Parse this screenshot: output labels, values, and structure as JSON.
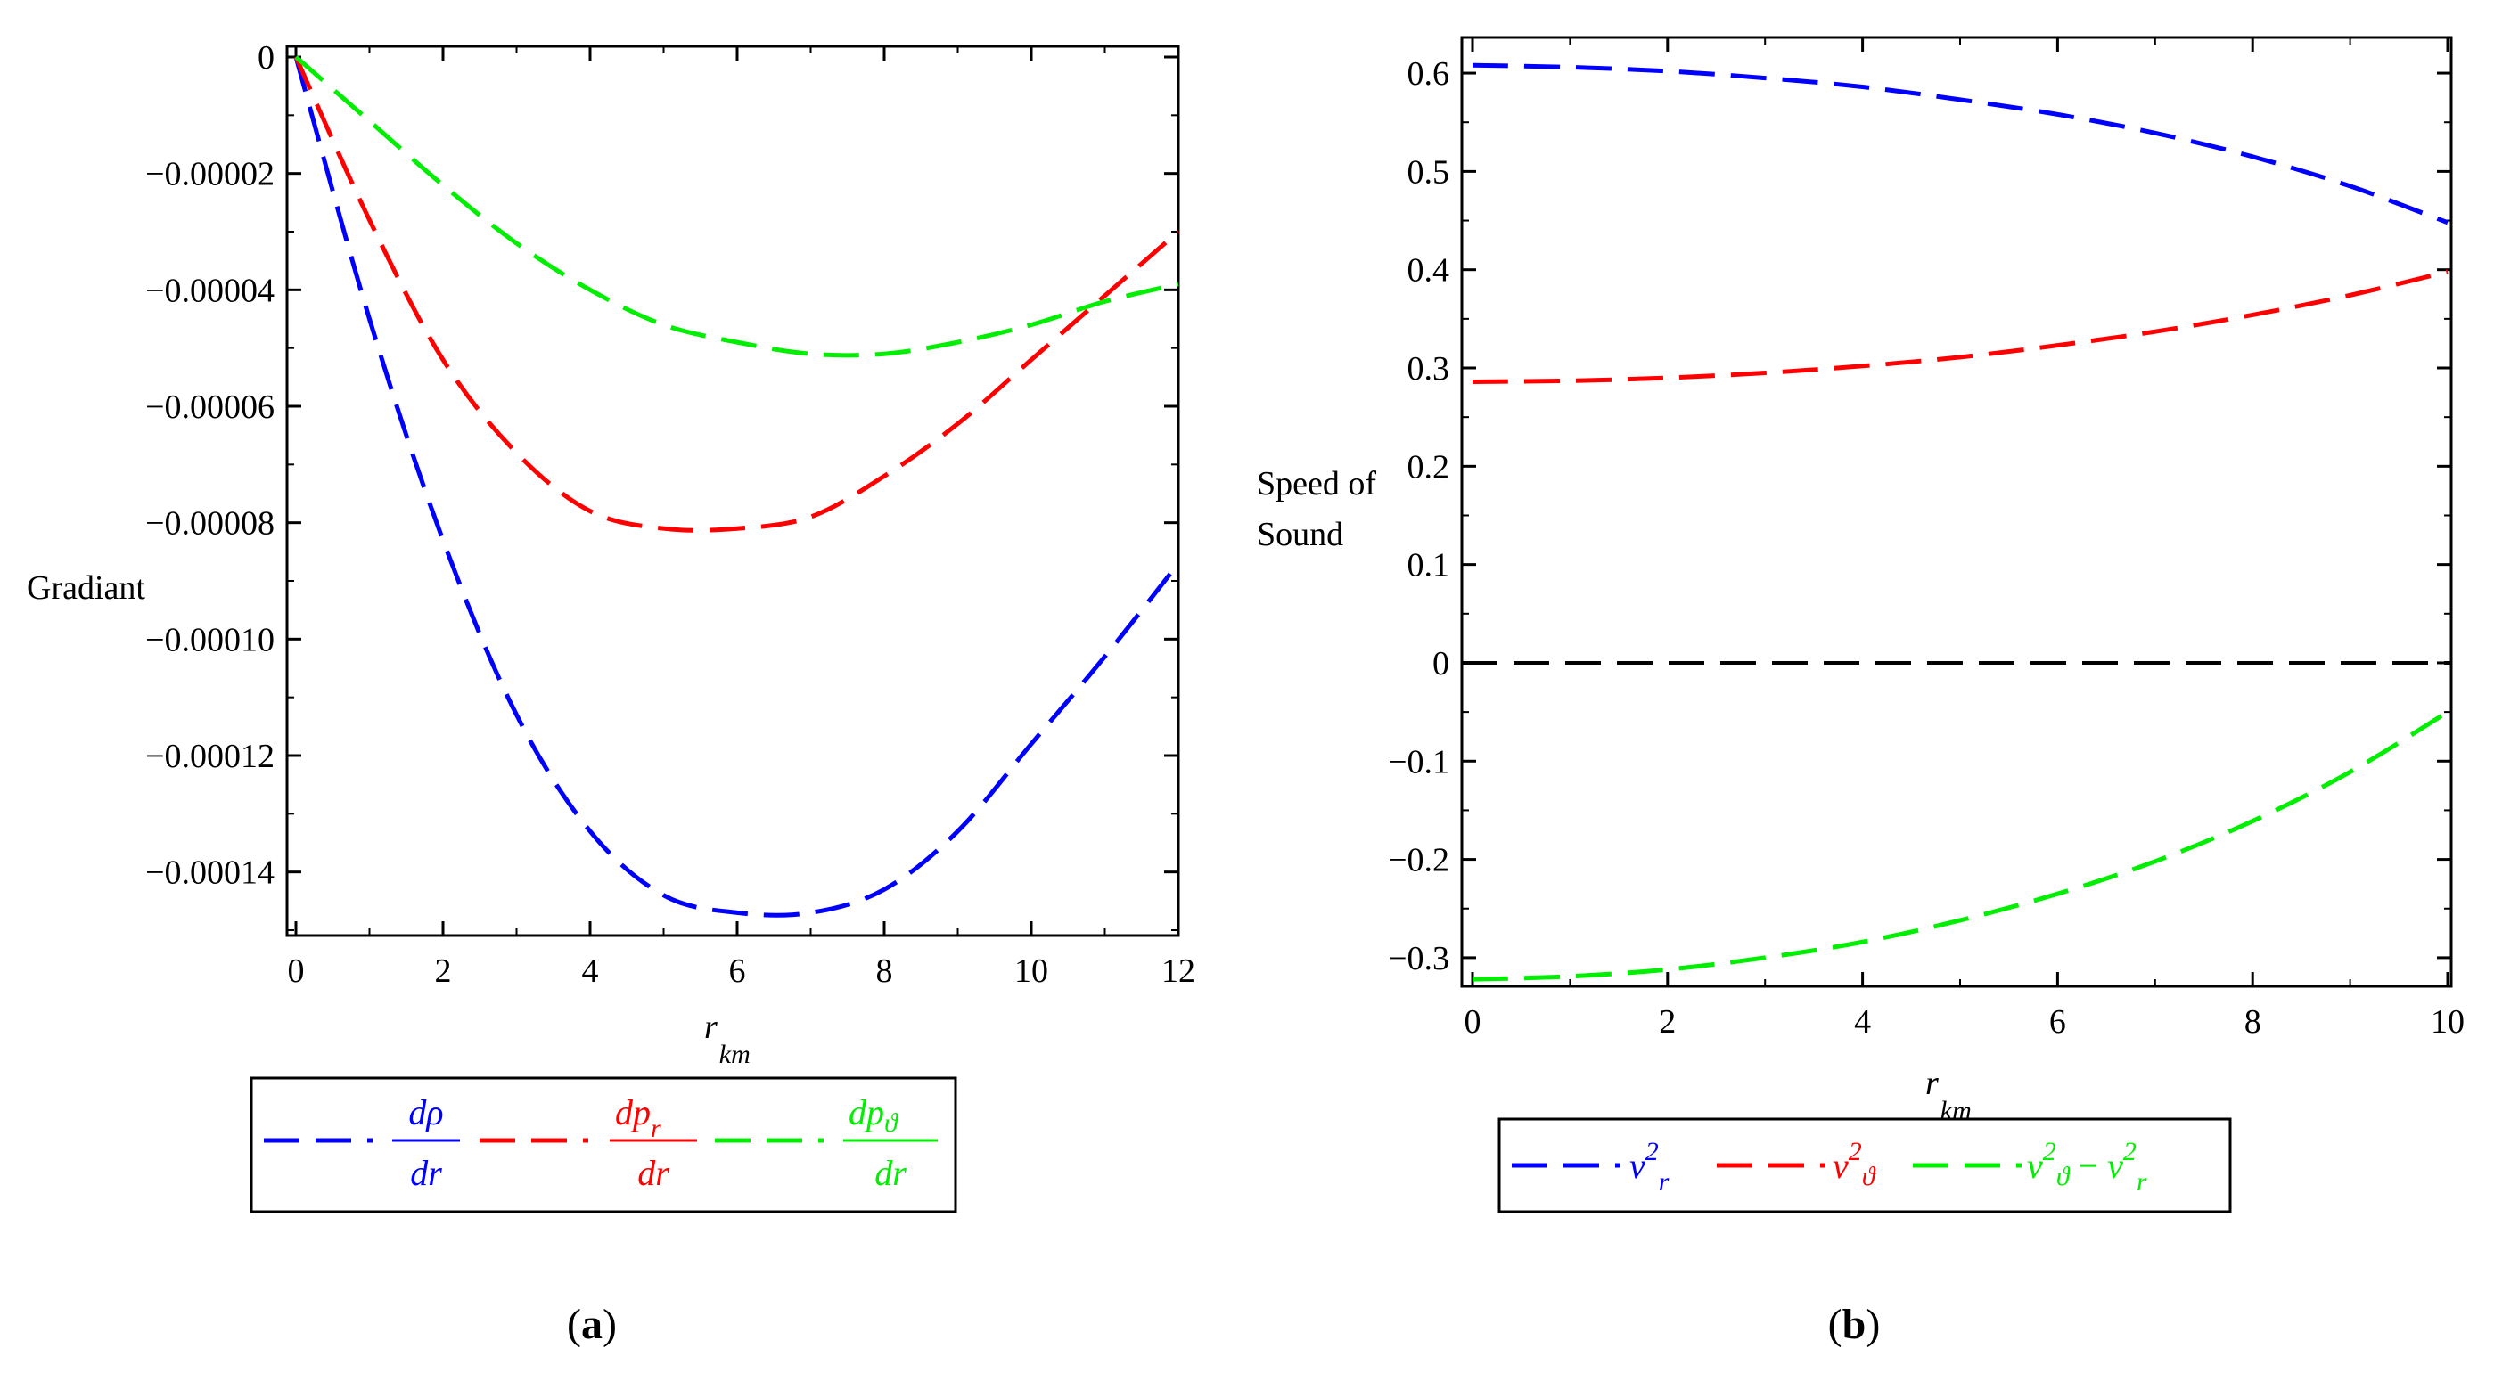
{
  "figure": {
    "panels": [
      {
        "letter": "(a)",
        "letter_bold": "a"
      },
      {
        "letter": "(b)",
        "letter_bold": "b"
      }
    ]
  },
  "chart_data": [
    {
      "type": "line",
      "panel": "a",
      "ylabel": "Gradiant",
      "xlabel_main": "r",
      "xlabel_sub": "km",
      "xlim": [
        0,
        12
      ],
      "ylim": [
        -0.00015,
        0
      ],
      "x_ticks": [
        0,
        2,
        4,
        6,
        8,
        10,
        12
      ],
      "x_tick_labels": [
        "0",
        "2",
        "4",
        "6",
        "8",
        "10",
        "12"
      ],
      "y_ticks": [
        0,
        -2e-05,
        -4e-05,
        -6e-05,
        -8e-05,
        -0.0001,
        -0.00012,
        -0.00014
      ],
      "y_tick_labels": [
        "0",
        "−0.00002",
        "−0.00004",
        "−0.00006",
        "−0.00008",
        "−0.00010",
        "−0.00012",
        "−0.00014"
      ],
      "x": [
        0,
        1,
        2,
        3,
        4,
        5,
        6,
        7,
        8,
        9,
        10,
        11,
        12
      ],
      "series": [
        {
          "name": "dρ/dr",
          "color": "#0000ff",
          "legend_num": "dρ",
          "legend_num_sub": "",
          "legend_den": "dr",
          "values": [
            0,
            -4.5e-05,
            -8.3e-05,
            -0.000113,
            -0.000133,
            -0.000144,
            -0.000147,
            -0.000147,
            -0.000143,
            -0.000133,
            -0.000118,
            -0.000103,
            -8.7e-05
          ]
        },
        {
          "name": "dp_r/dr",
          "color": "#ff0000",
          "legend_num": "dp",
          "legend_num_sub": "r",
          "legend_den": "dr",
          "values": [
            0,
            -2.8e-05,
            -5.2e-05,
            -6.8e-05,
            -7.8e-05,
            -8.1e-05,
            -8.1e-05,
            -7.9e-05,
            -7.2e-05,
            -6.3e-05,
            -5.2e-05,
            -4.1e-05,
            -3e-05
          ]
        },
        {
          "name": "dp_ϑ/dr",
          "color": "#00ee00",
          "legend_num": "dp",
          "legend_num_sub": "ϑ",
          "legend_den": "dr",
          "values": [
            0,
            -1.1e-05,
            -2.2e-05,
            -3.2e-05,
            -4e-05,
            -4.6e-05,
            -4.9e-05,
            -5.1e-05,
            -5.1e-05,
            -4.9e-05,
            -4.6e-05,
            -4.2e-05,
            -3.9e-05
          ]
        }
      ]
    },
    {
      "type": "line",
      "panel": "b",
      "ylabel_line1": "Speed of",
      "ylabel_line2": "Sound",
      "xlabel_main": "r",
      "xlabel_sub": "km",
      "xlim": [
        0,
        10
      ],
      "ylim": [
        -0.33,
        0.62
      ],
      "x_ticks": [
        0,
        2,
        4,
        6,
        8,
        10
      ],
      "x_tick_labels": [
        "0",
        "2",
        "4",
        "6",
        "8",
        "10"
      ],
      "y_ticks": [
        0.6,
        0.5,
        0.4,
        0.3,
        0.2,
        0.1,
        0,
        -0.1,
        -0.2,
        -0.3
      ],
      "y_tick_labels": [
        "0.6",
        "0.5",
        "0.4",
        "0.3",
        "0.2",
        "0.1",
        "0",
        "−0.1",
        "−0.2",
        "−0.3"
      ],
      "x": [
        0,
        1,
        2,
        3,
        4,
        5,
        6,
        7,
        8,
        9,
        10
      ],
      "reference_line": {
        "y": 0,
        "color": "#000000"
      },
      "series": [
        {
          "name": "v²_r",
          "color": "#0000ff",
          "values": [
            0.608,
            0.606,
            0.602,
            0.595,
            0.586,
            0.573,
            0.558,
            0.539,
            0.515,
            0.485,
            0.448
          ]
        },
        {
          "name": "v²_ϑ",
          "color": "#ff0000",
          "values": [
            0.286,
            0.287,
            0.29,
            0.295,
            0.302,
            0.311,
            0.323,
            0.337,
            0.354,
            0.374,
            0.398
          ]
        },
        {
          "name": "v²_ϑ − v²_r",
          "color": "#00ee00",
          "values": [
            -0.322,
            -0.319,
            -0.312,
            -0.3,
            -0.284,
            -0.262,
            -0.235,
            -0.202,
            -0.161,
            -0.111,
            -0.05
          ]
        }
      ]
    }
  ]
}
